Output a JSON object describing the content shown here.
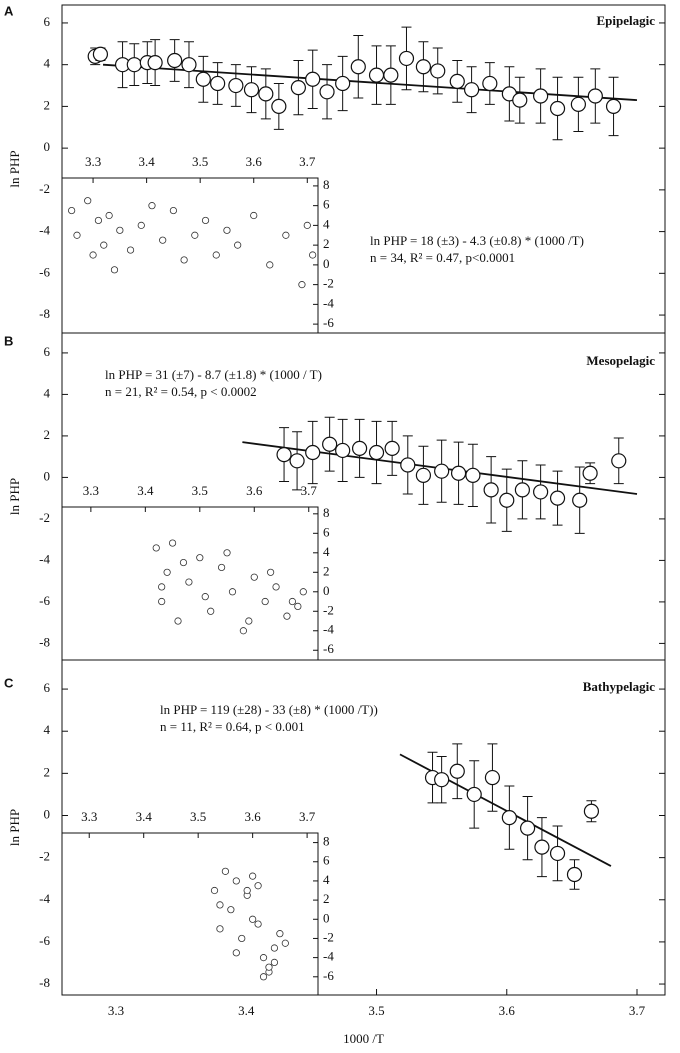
{
  "chart_data": [
    {
      "type": "scatter",
      "panel_label": "A",
      "title": "Epipelagic",
      "ylabel": "ln PHP",
      "equation": "ln PHP = 18 (±3) - 4.3 (±0.8) * (1000 /T)",
      "stats": "n = 34, R² = 0.47, p<0.0001",
      "x": [
        3.284,
        3.288,
        3.305,
        3.314,
        3.324,
        3.33,
        3.345,
        3.356,
        3.367,
        3.378,
        3.392,
        3.404,
        3.415,
        3.425,
        3.44,
        3.451,
        3.462,
        3.474,
        3.486,
        3.5,
        3.511,
        3.523,
        3.536,
        3.547,
        3.562,
        3.573,
        3.587,
        3.602,
        3.61,
        3.626,
        3.639,
        3.655,
        3.668,
        3.682
      ],
      "values": [
        4.4,
        4.5,
        4.0,
        4.0,
        4.1,
        4.1,
        4.2,
        4.0,
        3.3,
        3.1,
        3.0,
        2.8,
        2.6,
        2.0,
        2.9,
        3.3,
        2.7,
        3.1,
        3.9,
        3.5,
        3.5,
        4.3,
        3.9,
        3.7,
        3.2,
        2.8,
        3.1,
        2.6,
        2.3,
        2.5,
        1.9,
        2.1,
        2.5,
        2.0
      ],
      "errors": [
        0.4,
        0.3,
        1.1,
        1.0,
        1.0,
        1.1,
        1.0,
        1.1,
        1.1,
        1.0,
        1.0,
        1.1,
        1.2,
        1.1,
        1.3,
        1.4,
        1.3,
        1.3,
        1.5,
        1.4,
        1.4,
        1.5,
        1.2,
        1.1,
        1.0,
        1.1,
        1.0,
        1.3,
        1.1,
        1.3,
        1.5,
        1.3,
        1.3,
        1.4
      ],
      "fit_x": [
        3.29,
        3.7
      ],
      "fit_y": [
        4.0,
        2.3
      ],
      "xlim": [
        3.2585,
        3.7215
      ],
      "ylim": [
        -8.86,
        6.86
      ],
      "yticks": [
        6,
        4,
        2,
        0,
        -2,
        -4,
        -6,
        -8
      ],
      "inset": {
        "xlim": [
          3.242,
          3.72
        ],
        "ylim": [
          -6.9,
          8.8
        ],
        "xticks": [
          3.3,
          3.4,
          3.5,
          3.6,
          3.7
        ],
        "yticks": [
          8,
          6,
          4,
          2,
          0,
          -2,
          -4,
          -6
        ],
        "x": [
          3.26,
          3.27,
          3.29,
          3.3,
          3.31,
          3.32,
          3.33,
          3.34,
          3.35,
          3.37,
          3.39,
          3.41,
          3.43,
          3.45,
          3.47,
          3.49,
          3.51,
          3.53,
          3.55,
          3.57,
          3.6,
          3.63,
          3.66,
          3.69,
          3.7,
          3.71
        ],
        "y": [
          5.5,
          3.0,
          6.5,
          1.0,
          4.5,
          2.0,
          5.0,
          -0.5,
          3.5,
          1.5,
          4.0,
          6.0,
          2.5,
          5.5,
          0.5,
          3.0,
          4.5,
          1.0,
          3.5,
          2.0,
          5.0,
          0.0,
          3.0,
          -2.0,
          4.0,
          1.0
        ]
      }
    },
    {
      "type": "scatter",
      "panel_label": "B",
      "title": "Mesopelagic",
      "ylabel": "ln PHP",
      "equation": "ln PHP = 31 (±7) - 8.7 (±1.8) * (1000 / T)",
      "stats": "n = 21, R² = 0.54, p < 0.0002",
      "x": [
        3.429,
        3.439,
        3.451,
        3.464,
        3.474,
        3.487,
        3.5,
        3.512,
        3.524,
        3.536,
        3.55,
        3.563,
        3.574,
        3.588,
        3.6,
        3.612,
        3.626,
        3.639,
        3.656,
        3.664,
        3.686
      ],
      "values": [
        1.1,
        0.8,
        1.2,
        1.6,
        1.3,
        1.4,
        1.2,
        1.4,
        0.6,
        0.1,
        0.3,
        0.2,
        0.1,
        -0.6,
        -1.1,
        -0.6,
        -0.7,
        -1.0,
        -1.1,
        0.2,
        0.8
      ],
      "errors": [
        1.3,
        1.4,
        1.5,
        1.3,
        1.5,
        1.4,
        1.5,
        1.3,
        1.4,
        1.4,
        1.5,
        1.5,
        1.5,
        1.6,
        1.5,
        1.4,
        1.3,
        1.3,
        1.6,
        0.5,
        1.1
      ],
      "fit_x": [
        3.397,
        3.7
      ],
      "fit_y": [
        1.7,
        -0.8
      ],
      "xlim": [
        3.2585,
        3.7215
      ],
      "ylim": [
        -8.8,
        6.96
      ],
      "yticks": [
        6,
        4,
        2,
        0,
        -2,
        -4,
        -6,
        -8
      ],
      "inset": {
        "xlim": [
          3.247,
          3.717
        ],
        "ylim": [
          -7.0,
          8.7
        ],
        "xticks": [
          3.3,
          3.4,
          3.5,
          3.6,
          3.7
        ],
        "yticks": [
          8,
          6,
          4,
          2,
          0,
          -2,
          -4,
          -6
        ],
        "x": [
          3.42,
          3.43,
          3.44,
          3.45,
          3.46,
          3.48,
          3.5,
          3.52,
          3.54,
          3.56,
          3.58,
          3.6,
          3.62,
          3.64,
          3.66,
          3.68,
          3.69,
          3.43,
          3.47,
          3.51,
          3.55,
          3.59,
          3.63,
          3.67
        ],
        "y": [
          4.5,
          -1.0,
          2.0,
          5.0,
          -3.0,
          1.0,
          3.5,
          -2.0,
          2.5,
          0.0,
          -4.0,
          1.5,
          -1.0,
          0.5,
          -2.5,
          -1.5,
          0.0,
          0.5,
          3.0,
          -0.5,
          4.0,
          -3.0,
          2.0,
          -1.0
        ]
      }
    },
    {
      "type": "scatter",
      "panel_label": "C",
      "title": "Bathypelagic",
      "ylabel": "ln PHP",
      "xlabel": "1000 /T",
      "equation": "ln PHP = 119 (±28) - 33 (±8) * (1000 /T))",
      "stats": "n = 11, R² = 0.64, p < 0.001",
      "x": [
        3.543,
        3.55,
        3.562,
        3.575,
        3.589,
        3.602,
        3.616,
        3.627,
        3.639,
        3.652,
        3.665
      ],
      "values": [
        1.8,
        1.7,
        2.1,
        1.0,
        1.8,
        -0.1,
        -0.6,
        -1.5,
        -1.8,
        -2.8,
        0.2
      ],
      "errors": [
        1.2,
        1.1,
        1.3,
        1.6,
        1.6,
        1.5,
        1.5,
        1.4,
        1.3,
        0.7,
        0.5
      ],
      "fit_x": [
        3.518,
        3.68
      ],
      "fit_y": [
        2.9,
        -2.4
      ],
      "xlim": [
        3.2585,
        3.7215
      ],
      "ylim": [
        -8.52,
        7.38
      ],
      "yticks": [
        6,
        4,
        2,
        0,
        -2,
        -4,
        -6,
        -8
      ],
      "xticks": [
        3.3,
        3.4,
        3.5,
        3.6,
        3.7
      ],
      "inset": {
        "xlim": [
          3.25,
          3.72
        ],
        "ylim": [
          -7.9,
          9.0
        ],
        "xticks": [
          3.3,
          3.4,
          3.5,
          3.6,
          3.7
        ],
        "yticks": [
          8,
          6,
          4,
          2,
          0,
          -2,
          -4,
          -6
        ],
        "x": [
          3.53,
          3.54,
          3.55,
          3.56,
          3.57,
          3.58,
          3.59,
          3.6,
          3.61,
          3.62,
          3.63,
          3.64,
          3.65,
          3.66,
          3.54,
          3.57,
          3.6,
          3.63,
          3.62,
          3.64,
          3.61,
          3.59
        ],
        "y": [
          3.0,
          -1.0,
          5.0,
          1.0,
          4.0,
          -2.0,
          2.5,
          0.0,
          3.5,
          -4.0,
          -5.5,
          -3.0,
          -1.5,
          -2.5,
          1.5,
          -3.5,
          4.5,
          -5.0,
          -6.0,
          -4.5,
          -0.5,
          3.0
        ]
      }
    }
  ]
}
